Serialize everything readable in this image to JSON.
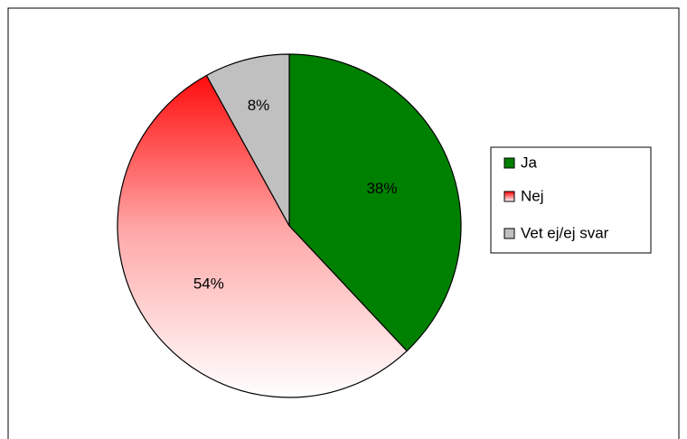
{
  "chart_data": {
    "type": "pie",
    "categories": [
      "Ja",
      "Nej",
      "Vet ej/ej svar"
    ],
    "values": [
      38,
      54,
      8
    ],
    "value_labels": [
      "38%",
      "54%",
      "8%"
    ],
    "colors": [
      "#008000",
      "#ff0000",
      "#c0c0c0"
    ],
    "legend": "right"
  }
}
